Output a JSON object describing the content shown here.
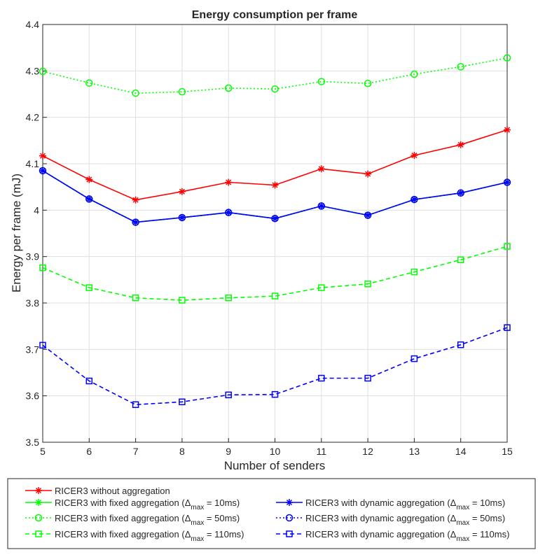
{
  "chart_data": {
    "type": "line",
    "title": "Energy consumption per frame",
    "xlabel": "Number of senders",
    "ylabel": "Energy per frame (mJ)",
    "xlim": [
      5,
      15
    ],
    "ylim": [
      3.5,
      4.4
    ],
    "xticks": [
      5,
      6,
      7,
      8,
      9,
      10,
      11,
      12,
      13,
      14,
      15
    ],
    "yticks": [
      3.5,
      3.6,
      3.7,
      3.8,
      3.9,
      4,
      4.1,
      4.2,
      4.3,
      4.4
    ],
    "grid": true,
    "legend_placement": "bottom",
    "x": [
      5,
      6,
      7,
      8,
      9,
      10,
      11,
      12,
      13,
      14,
      15
    ],
    "series": [
      {
        "id": "no-agg",
        "name": "RICER3 without aggregation",
        "color": "#ff0000",
        "dash": "solid",
        "marker": "asterisk",
        "values": [
          4.117,
          4.066,
          4.022,
          4.04,
          4.06,
          4.054,
          4.089,
          4.078,
          4.118,
          4.141,
          4.173
        ]
      },
      {
        "id": "fixed-10",
        "name_prefix": "RICER3 with fixed aggregation (",
        "name_delta": "Δ",
        "name_sub": "max",
        "name_suffix": " = 10ms)",
        "color": "#00ff00",
        "dash": "solid",
        "marker": "asterisk",
        "values": [
          4.085,
          4.024,
          3.974,
          3.984,
          3.995,
          3.982,
          4.009,
          3.989,
          4.023,
          4.037,
          4.06
        ]
      },
      {
        "id": "fixed-50",
        "name_prefix": "RICER3 with fixed aggregation (",
        "name_delta": "Δ",
        "name_sub": "max",
        "name_suffix": " = 50ms)",
        "color": "#00ff00",
        "dash": "dotted",
        "marker": "circle",
        "values": [
          4.299,
          4.274,
          4.252,
          4.255,
          4.263,
          4.261,
          4.277,
          4.273,
          4.293,
          4.309,
          4.328
        ]
      },
      {
        "id": "fixed-110",
        "name_prefix": "RICER3 with fixed aggregation (",
        "name_delta": "Δ",
        "name_sub": "max",
        "name_suffix": " = 110ms)",
        "color": "#00ff00",
        "dash": "dashed",
        "marker": "square",
        "values": [
          3.876,
          3.833,
          3.811,
          3.806,
          3.811,
          3.815,
          3.833,
          3.841,
          3.867,
          3.893,
          3.922
        ]
      },
      {
        "id": "dyn-10",
        "name_prefix": "RICER3 with dynamic aggregation (",
        "name_delta": "Δ",
        "name_sub": "max",
        "name_suffix": " = 10ms)",
        "color": "#0000ff",
        "dash": "solid",
        "marker": "asterisk",
        "values": [
          4.085,
          4.024,
          3.974,
          3.984,
          3.995,
          3.982,
          4.009,
          3.989,
          4.023,
          4.037,
          4.06
        ]
      },
      {
        "id": "dyn-50",
        "name_prefix": "RICER3 with dynamic aggregation (",
        "name_delta": "Δ",
        "name_sub": "max",
        "name_suffix": " = 50ms)",
        "color": "#0000ff",
        "dash": "dotted",
        "marker": "circle",
        "values": [
          4.085,
          4.024,
          3.974,
          3.984,
          3.995,
          3.982,
          4.009,
          3.989,
          4.023,
          4.037,
          4.06
        ]
      },
      {
        "id": "dyn-110",
        "name_prefix": "RICER3 with dynamic aggregation (",
        "name_delta": "Δ",
        "name_sub": "max",
        "name_suffix": " = 110ms)",
        "color": "#0000ff",
        "dash": "dashed",
        "marker": "square",
        "values": [
          3.709,
          3.632,
          3.581,
          3.587,
          3.602,
          3.603,
          3.638,
          3.638,
          3.68,
          3.71,
          3.747
        ]
      }
    ]
  }
}
